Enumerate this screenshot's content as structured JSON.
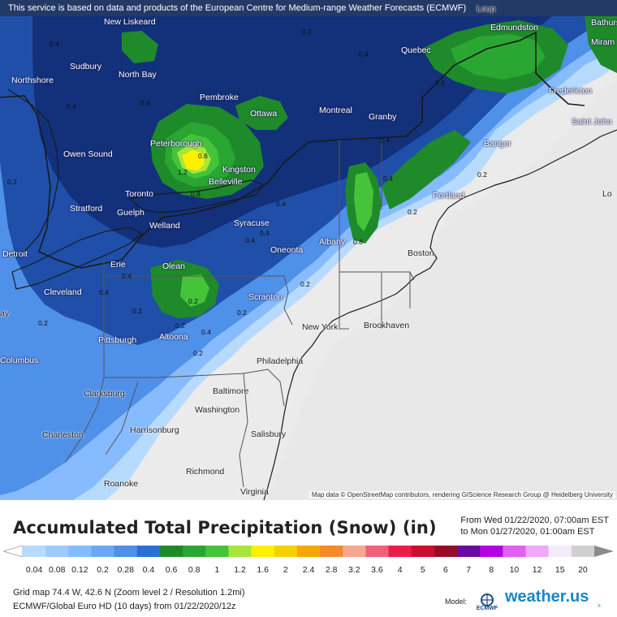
{
  "top_note": "This service is based on data and products of the European Centre for Medium-range Weather Forecasts (ECMWF)",
  "attribution": "Map data © OpenStreetMap contributors, rendering GIScience Research Group @ Heidelberg University",
  "title": "Accumulated Total Precipitation (Snow) (in)",
  "date_from": "From Wed 01/22/2020, 07:00am EST",
  "date_to": "to Mon 01/27/2020, 01:00am EST",
  "legend": {
    "labels": [
      "0.04",
      "0.08",
      "0.12",
      "0.2",
      "0.28",
      "0.4",
      "0.6",
      "0.8",
      "1",
      "1.2",
      "1.6",
      "2",
      "2.4",
      "2.8",
      "3.2",
      "3.6",
      "4",
      "5",
      "6",
      "7",
      "8",
      "10",
      "12",
      "15",
      "20"
    ],
    "colors": [
      "#b6dbff",
      "#9ecbff",
      "#86bcff",
      "#6aa8f5",
      "#4f90e8",
      "#2c6fd6",
      "#1f8a2a",
      "#2aa632",
      "#45c43a",
      "#a8e63c",
      "#fff000",
      "#f2d200",
      "#f6a800",
      "#f68a2a",
      "#f4a890",
      "#f0607a",
      "#e81e4a",
      "#c8102e",
      "#9a0a28",
      "#6a0aa0",
      "#b400e6",
      "#e060f0",
      "#f0a8f8",
      "#f4ecfa",
      "#d0d0d0"
    ],
    "arrow_left_color": "#ffffff",
    "arrow_right_color": "#8a8a8a"
  },
  "grid_info": "Grid map 74.4 W, 42.6 N (Zoom level 2 / Resolution 1.2mi)",
  "model_info": "ECMWF/Global Euro HD (10 days)  from  01/22/2020/12z",
  "model_label": "Model:",
  "model_logo_text": "ECMWF",
  "brand": "weather.us",
  "brand_sup": "®",
  "cities": [
    {
      "name": "Sudbury"
    },
    {
      "name": "Northshore"
    },
    {
      "name": "North Bay"
    },
    {
      "name": "New Liskeard"
    },
    {
      "name": "Pembroke"
    },
    {
      "name": "Ottawa"
    },
    {
      "name": "Montreal"
    },
    {
      "name": "Granby"
    },
    {
      "name": "Quebec"
    },
    {
      "name": "Edmundston"
    },
    {
      "name": "Fredericton"
    },
    {
      "name": "Saint John"
    },
    {
      "name": "Bangor"
    },
    {
      "name": "Portland"
    },
    {
      "name": "Boston"
    },
    {
      "name": "Albany"
    },
    {
      "name": "Syracuse"
    },
    {
      "name": "Kingston"
    },
    {
      "name": "Belleville"
    },
    {
      "name": "Peterborough"
    },
    {
      "name": "Owen Sound"
    },
    {
      "name": "Toronto"
    },
    {
      "name": "Stratford"
    },
    {
      "name": "Guelph"
    },
    {
      "name": "Welland"
    },
    {
      "name": "Detroit"
    },
    {
      "name": "Erie"
    },
    {
      "name": "Olean"
    },
    {
      "name": "Oneonta"
    },
    {
      "name": "Scranton"
    },
    {
      "name": "Cleveland"
    },
    {
      "name": "Pittsburgh"
    },
    {
      "name": "Altoona"
    },
    {
      "name": "New York"
    },
    {
      "name": "Brookhaven"
    },
    {
      "name": "Philadelphia"
    },
    {
      "name": "Baltimore"
    },
    {
      "name": "Washington"
    },
    {
      "name": "Clarksburg"
    },
    {
      "name": "Harrisonburg"
    },
    {
      "name": "Charleston"
    },
    {
      "name": "Salisbury"
    },
    {
      "name": "Richmond"
    },
    {
      "name": "Roanoke"
    },
    {
      "name": "Virginia"
    },
    {
      "name": "Columbus"
    },
    {
      "name": "Bathurst"
    },
    {
      "name": "Miram"
    },
    {
      "name": "Loup"
    },
    {
      "name": "Lo"
    },
    {
      "name": "ay"
    }
  ],
  "contour_labels": [
    "0.4",
    "0.2",
    "0.4",
    "0.4",
    "0.4",
    "0.4",
    "0.4",
    "0.2",
    "0.2",
    "0.2",
    "0.8",
    "0.6",
    "1.2",
    "0.4",
    "0.4",
    "0.4",
    "0.2",
    "0.8",
    "0.4",
    "0.2",
    "0.2",
    "0.2",
    "0.4",
    "0.2",
    "0.2",
    "0.4",
    "0.2",
    "0.4"
  ]
}
